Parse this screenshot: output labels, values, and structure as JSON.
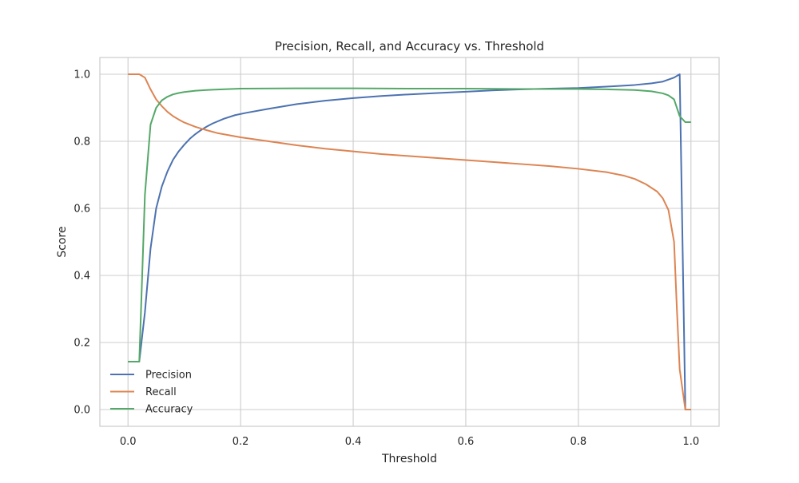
{
  "chart_data": {
    "type": "line",
    "title": "Precision, Recall, and Accuracy vs. Threshold",
    "xlabel": "Threshold",
    "ylabel": "Score",
    "xlim": [
      -0.05,
      1.05
    ],
    "ylim": [
      -0.05,
      1.05
    ],
    "xticks": [
      0.0,
      0.2,
      0.4,
      0.6,
      0.8,
      1.0
    ],
    "xtick_labels": [
      "0.0",
      "0.2",
      "0.4",
      "0.6",
      "0.8",
      "1.0"
    ],
    "yticks": [
      0.0,
      0.2,
      0.4,
      0.6,
      0.8,
      1.0
    ],
    "ytick_labels": [
      "0.0",
      "0.2",
      "0.4",
      "0.6",
      "0.8",
      "1.0"
    ],
    "grid": true,
    "legend_position": "lower-left",
    "series": [
      {
        "name": "Precision",
        "color": "#4c72b0",
        "points": [
          [
            0.0,
            0.143
          ],
          [
            0.01,
            0.143
          ],
          [
            0.02,
            0.143
          ],
          [
            0.03,
            0.29
          ],
          [
            0.04,
            0.48
          ],
          [
            0.05,
            0.6
          ],
          [
            0.06,
            0.665
          ],
          [
            0.07,
            0.71
          ],
          [
            0.08,
            0.745
          ],
          [
            0.09,
            0.77
          ],
          [
            0.1,
            0.79
          ],
          [
            0.11,
            0.808
          ],
          [
            0.12,
            0.822
          ],
          [
            0.13,
            0.834
          ],
          [
            0.14,
            0.844
          ],
          [
            0.15,
            0.853
          ],
          [
            0.17,
            0.867
          ],
          [
            0.19,
            0.878
          ],
          [
            0.21,
            0.885
          ],
          [
            0.25,
            0.897
          ],
          [
            0.3,
            0.911
          ],
          [
            0.35,
            0.921
          ],
          [
            0.4,
            0.929
          ],
          [
            0.45,
            0.935
          ],
          [
            0.5,
            0.94
          ],
          [
            0.55,
            0.944
          ],
          [
            0.6,
            0.948
          ],
          [
            0.65,
            0.952
          ],
          [
            0.7,
            0.955
          ],
          [
            0.75,
            0.957
          ],
          [
            0.8,
            0.959
          ],
          [
            0.85,
            0.963
          ],
          [
            0.9,
            0.968
          ],
          [
            0.93,
            0.973
          ],
          [
            0.95,
            0.978
          ],
          [
            0.96,
            0.984
          ],
          [
            0.97,
            0.99
          ],
          [
            0.98,
            1.0
          ],
          [
            0.99,
            0.0
          ],
          [
            1.0,
            0.0
          ]
        ]
      },
      {
        "name": "Recall",
        "color": "#dd8452",
        "points": [
          [
            0.0,
            1.0
          ],
          [
            0.01,
            1.0
          ],
          [
            0.02,
            1.0
          ],
          [
            0.03,
            0.99
          ],
          [
            0.04,
            0.955
          ],
          [
            0.05,
            0.925
          ],
          [
            0.06,
            0.905
          ],
          [
            0.07,
            0.888
          ],
          [
            0.08,
            0.875
          ],
          [
            0.09,
            0.865
          ],
          [
            0.1,
            0.856
          ],
          [
            0.12,
            0.843
          ],
          [
            0.14,
            0.833
          ],
          [
            0.16,
            0.824
          ],
          [
            0.2,
            0.812
          ],
          [
            0.25,
            0.8
          ],
          [
            0.3,
            0.788
          ],
          [
            0.35,
            0.778
          ],
          [
            0.4,
            0.77
          ],
          [
            0.45,
            0.762
          ],
          [
            0.5,
            0.756
          ],
          [
            0.55,
            0.75
          ],
          [
            0.6,
            0.744
          ],
          [
            0.65,
            0.738
          ],
          [
            0.7,
            0.732
          ],
          [
            0.75,
            0.726
          ],
          [
            0.8,
            0.718
          ],
          [
            0.85,
            0.708
          ],
          [
            0.88,
            0.698
          ],
          [
            0.9,
            0.688
          ],
          [
            0.92,
            0.672
          ],
          [
            0.94,
            0.65
          ],
          [
            0.95,
            0.63
          ],
          [
            0.96,
            0.595
          ],
          [
            0.97,
            0.5
          ],
          [
            0.975,
            0.3
          ],
          [
            0.98,
            0.12
          ],
          [
            0.99,
            0.0
          ],
          [
            1.0,
            0.0
          ]
        ]
      },
      {
        "name": "Accuracy",
        "color": "#55a868",
        "points": [
          [
            0.0,
            0.143
          ],
          [
            0.01,
            0.143
          ],
          [
            0.02,
            0.143
          ],
          [
            0.03,
            0.64
          ],
          [
            0.04,
            0.85
          ],
          [
            0.05,
            0.9
          ],
          [
            0.06,
            0.922
          ],
          [
            0.07,
            0.933
          ],
          [
            0.08,
            0.94
          ],
          [
            0.09,
            0.944
          ],
          [
            0.1,
            0.947
          ],
          [
            0.12,
            0.951
          ],
          [
            0.15,
            0.954
          ],
          [
            0.2,
            0.957
          ],
          [
            0.3,
            0.958
          ],
          [
            0.4,
            0.958
          ],
          [
            0.5,
            0.957
          ],
          [
            0.6,
            0.957
          ],
          [
            0.7,
            0.956
          ],
          [
            0.8,
            0.956
          ],
          [
            0.85,
            0.955
          ],
          [
            0.9,
            0.953
          ],
          [
            0.93,
            0.949
          ],
          [
            0.95,
            0.943
          ],
          [
            0.96,
            0.937
          ],
          [
            0.97,
            0.925
          ],
          [
            0.98,
            0.875
          ],
          [
            0.99,
            0.857
          ],
          [
            1.0,
            0.857
          ]
        ]
      }
    ]
  }
}
